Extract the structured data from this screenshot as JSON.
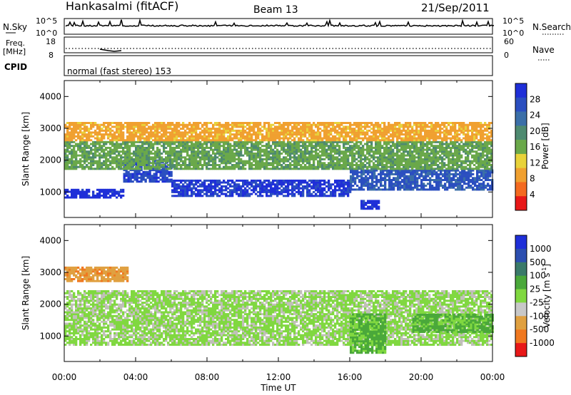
{
  "header": {
    "station": "Hankasalmi (fitACF)",
    "beam": "Beam 13",
    "date": "21/Sep/2011"
  },
  "noise_panel": {
    "left_label": "N.Sky",
    "right_label": "N.Search",
    "left_ticks": [
      "10^5",
      "10^0"
    ],
    "right_ticks": [
      "10^5",
      "10^0"
    ]
  },
  "freq_panel": {
    "left_label_1": "Freq.",
    "left_label_2": "[MHz]",
    "left_ticks": [
      "18",
      "8"
    ],
    "right_label": "Nave",
    "right_ticks": [
      "60",
      "0"
    ]
  },
  "cpid_panel": {
    "label": "CPID",
    "text": "normal (fast stereo) 153"
  },
  "colors": {
    "power_scale": [
      "#1f2fd8",
      "#2b4fc0",
      "#3b6fa8",
      "#4e8a70",
      "#6aa84a",
      "#e8d23a",
      "#f0a030",
      "#f46a20",
      "#e81818"
    ],
    "velocity_scale": [
      "#1f2fd8",
      "#2c4fb0",
      "#3a7a6a",
      "#4aa83a",
      "#80d840",
      "#c8c8c8",
      "#e0a040",
      "#f07820",
      "#e81818"
    ],
    "ground_scatter": "#c0c0b8"
  },
  "chart_data": [
    {
      "type": "heatmap",
      "title": "",
      "xlabel": "",
      "ylabel": "Slant Range [km]",
      "xlim": [
        0,
        24
      ],
      "ylim": [
        200,
        4500
      ],
      "x_ticks": [
        "00:00",
        "04:00",
        "08:00",
        "12:00",
        "16:00",
        "20:00",
        "00:00"
      ],
      "y_ticks": [
        "1000",
        "2000",
        "3000",
        "4000"
      ],
      "colorbar": {
        "label": "Power [dB]",
        "ticks": [
          "28",
          "24",
          "20",
          "16",
          "12",
          "8",
          "4"
        ],
        "range": [
          0,
          30
        ]
      },
      "bands": [
        {
          "t": [
            0,
            3.3
          ],
          "r": [
            800,
            1050
          ],
          "value": 28
        },
        {
          "t": [
            3.3,
            6.0
          ],
          "r": [
            1300,
            2000
          ],
          "value": 26
        },
        {
          "t": [
            6.0,
            16.0
          ],
          "r": [
            850,
            1350
          ],
          "value": 27
        },
        {
          "t": [
            16.0,
            24.0
          ],
          "r": [
            1050,
            1700
          ],
          "value": 24
        },
        {
          "t": [
            16.6,
            17.6
          ],
          "r": [
            450,
            720
          ],
          "value": 28
        },
        {
          "t": [
            0,
            24.0
          ],
          "r": [
            1700,
            2600
          ],
          "value": 16
        },
        {
          "t": [
            0,
            24.0
          ],
          "r": [
            2600,
            3200
          ],
          "value": 9
        }
      ]
    },
    {
      "type": "heatmap",
      "title": "",
      "xlabel": "Time UT",
      "ylabel": "Slant Range [km]",
      "xlim": [
        0,
        24
      ],
      "ylim": [
        200,
        4500
      ],
      "x_ticks": [
        "00:00",
        "04:00",
        "08:00",
        "12:00",
        "16:00",
        "20:00",
        "00:00"
      ],
      "y_ticks": [
        "1000",
        "2000",
        "3000",
        "4000"
      ],
      "colorbar": {
        "label": "Velocity [m s^-1]",
        "ticks": [
          "1000",
          "500",
          "100",
          "25",
          "-25",
          "-100",
          "-500",
          "-1000"
        ],
        "range": [
          -1000,
          1000
        ]
      },
      "bands": [
        {
          "t": [
            0,
            3.5
          ],
          "r": [
            2700,
            3150
          ],
          "value": -500
        },
        {
          "t": [
            0,
            24.0
          ],
          "r": [
            700,
            2400
          ],
          "value": 0
        },
        {
          "t": [
            16.0,
            18.0
          ],
          "r": [
            450,
            1700
          ],
          "value": 150
        },
        {
          "t": [
            19.5,
            24.0
          ],
          "r": [
            1100,
            1700
          ],
          "value": 150
        }
      ]
    }
  ]
}
